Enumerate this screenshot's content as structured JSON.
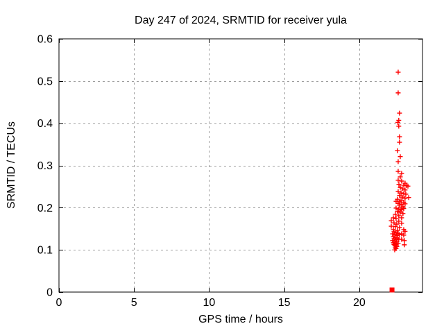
{
  "chart_data": {
    "type": "scatter",
    "title": "Day 247 of 2024, SRMTID for receiver yula",
    "xlabel": "GPS time / hours",
    "ylabel": "SRMTID / TECUs",
    "xlim": [
      0,
      24.21
    ],
    "ylim": [
      0,
      0.6
    ],
    "x_ticks": [
      0,
      5,
      10,
      15,
      20
    ],
    "x_tick_labels": [
      "0",
      "5",
      "10",
      "15",
      "20"
    ],
    "y_ticks": [
      0,
      0.1,
      0.2,
      0.3,
      0.4,
      0.5,
      0.6
    ],
    "y_tick_labels": [
      "0",
      "0.1",
      "0.2",
      "0.3",
      "0.4",
      "0.5",
      "0.6"
    ],
    "grid": true,
    "legend": "none",
    "marker_color": "#ff0000",
    "grid_color": "#9e9e9e",
    "border_color": "#000000",
    "series": [
      {
        "name": "srmtid",
        "marker": "plus",
        "points": [
          [
            22.59,
            0.521
          ],
          [
            22.59,
            0.472
          ],
          [
            22.68,
            0.424
          ],
          [
            22.63,
            0.407
          ],
          [
            22.57,
            0.402
          ],
          [
            22.63,
            0.393
          ],
          [
            22.68,
            0.368
          ],
          [
            22.68,
            0.355
          ],
          [
            22.54,
            0.335
          ],
          [
            22.73,
            0.321
          ],
          [
            22.59,
            0.309
          ],
          [
            22.59,
            0.286
          ],
          [
            22.82,
            0.281
          ],
          [
            22.73,
            0.273
          ],
          [
            22.59,
            0.265
          ],
          [
            22.82,
            0.263
          ],
          [
            23.05,
            0.258
          ],
          [
            22.64,
            0.255
          ],
          [
            22.96,
            0.253
          ],
          [
            23.15,
            0.252
          ],
          [
            23.24,
            0.251
          ],
          [
            22.73,
            0.248
          ],
          [
            22.87,
            0.245
          ],
          [
            23.05,
            0.242
          ],
          [
            22.59,
            0.238
          ],
          [
            22.78,
            0.235
          ],
          [
            22.96,
            0.233
          ],
          [
            23.1,
            0.232
          ],
          [
            22.68,
            0.229
          ],
          [
            22.87,
            0.225
          ],
          [
            23.29,
            0.224
          ],
          [
            23.05,
            0.222
          ],
          [
            22.54,
            0.22
          ],
          [
            22.78,
            0.217
          ],
          [
            22.45,
            0.215
          ],
          [
            22.68,
            0.214
          ],
          [
            22.96,
            0.213
          ],
          [
            22.59,
            0.21
          ],
          [
            23.05,
            0.209
          ],
          [
            22.82,
            0.208
          ],
          [
            22.68,
            0.206
          ],
          [
            22.91,
            0.202
          ],
          [
            22.78,
            0.197
          ],
          [
            22.45,
            0.199
          ],
          [
            22.63,
            0.197
          ],
          [
            22.96,
            0.198
          ],
          [
            22.82,
            0.195
          ],
          [
            22.54,
            0.191
          ],
          [
            22.73,
            0.189
          ],
          [
            22.91,
            0.186
          ],
          [
            22.4,
            0.184
          ],
          [
            22.63,
            0.181
          ],
          [
            22.27,
            0.176
          ],
          [
            22.82,
            0.176
          ],
          [
            22.45,
            0.174
          ],
          [
            22.13,
            0.169
          ],
          [
            22.63,
            0.168
          ],
          [
            22.31,
            0.164
          ],
          [
            22.82,
            0.163
          ],
          [
            22.5,
            0.161
          ],
          [
            22.13,
            0.156
          ],
          [
            22.4,
            0.155
          ],
          [
            22.68,
            0.153
          ],
          [
            22.96,
            0.148
          ],
          [
            22.27,
            0.148
          ],
          [
            22.54,
            0.146
          ],
          [
            23.05,
            0.144
          ],
          [
            22.31,
            0.143
          ],
          [
            22.45,
            0.141
          ],
          [
            22.59,
            0.139
          ],
          [
            22.22,
            0.138
          ],
          [
            22.82,
            0.138
          ],
          [
            22.36,
            0.136
          ],
          [
            22.96,
            0.135
          ],
          [
            22.5,
            0.134
          ],
          [
            22.68,
            0.136
          ],
          [
            22.27,
            0.131
          ],
          [
            22.4,
            0.129
          ],
          [
            22.54,
            0.128
          ],
          [
            22.31,
            0.126
          ],
          [
            22.82,
            0.125
          ],
          [
            22.45,
            0.124
          ],
          [
            22.63,
            0.125
          ],
          [
            22.22,
            0.122
          ],
          [
            23.0,
            0.122
          ],
          [
            22.36,
            0.121
          ],
          [
            22.5,
            0.119
          ],
          [
            22.27,
            0.117
          ],
          [
            22.4,
            0.116
          ],
          [
            22.59,
            0.115
          ],
          [
            22.31,
            0.113
          ],
          [
            23.0,
            0.112
          ],
          [
            22.45,
            0.112
          ],
          [
            22.36,
            0.11
          ],
          [
            22.5,
            0.108
          ],
          [
            22.4,
            0.105
          ],
          [
            22.45,
            0.103
          ],
          [
            22.36,
            0.1
          ]
        ]
      },
      {
        "name": "srmtid-marker2",
        "marker": "filled-square",
        "points": [
          [
            22.18,
            0.005
          ]
        ]
      }
    ]
  }
}
